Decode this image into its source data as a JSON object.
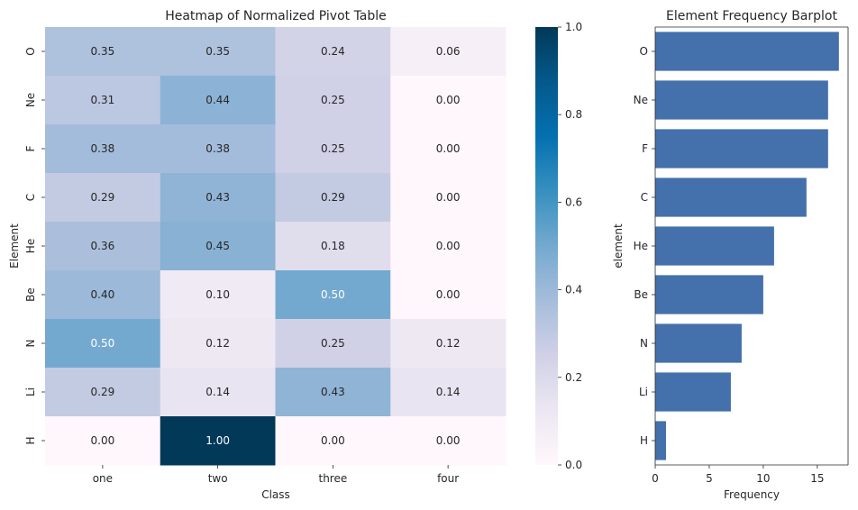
{
  "chart_data": [
    {
      "type": "heatmap",
      "title": "Heatmap of Normalized Pivot Table",
      "xlabel": "Class",
      "ylabel": "Element",
      "x_categories": [
        "one",
        "two",
        "three",
        "four"
      ],
      "y_categories": [
        "O",
        "Ne",
        "F",
        "C",
        "He",
        "Be",
        "N",
        "Li",
        "H"
      ],
      "values": [
        [
          0.35,
          0.35,
          0.24,
          0.06
        ],
        [
          0.31,
          0.44,
          0.25,
          0.0
        ],
        [
          0.38,
          0.38,
          0.25,
          0.0
        ],
        [
          0.29,
          0.43,
          0.29,
          0.0
        ],
        [
          0.36,
          0.45,
          0.18,
          0.0
        ],
        [
          0.4,
          0.1,
          0.5,
          0.0
        ],
        [
          0.5,
          0.12,
          0.25,
          0.12
        ],
        [
          0.29,
          0.14,
          0.43,
          0.14
        ],
        [
          0.0,
          1.0,
          0.0,
          0.0
        ]
      ],
      "value_format": "0.00",
      "colormap": "PuBu",
      "colorbar": {
        "range": [
          0,
          1
        ],
        "ticks": [
          "0.0",
          "0.2",
          "0.4",
          "0.6",
          "0.8",
          "1.0"
        ]
      },
      "grid": false
    },
    {
      "type": "bar",
      "orientation": "horizontal",
      "title": "Element Frequency Barplot",
      "xlabel": "Frequency",
      "ylabel": "element",
      "categories": [
        "O",
        "Ne",
        "F",
        "C",
        "He",
        "Be",
        "N",
        "Li",
        "H"
      ],
      "values": [
        17,
        16,
        16,
        14,
        11,
        10,
        8,
        7,
        1
      ],
      "xlim": [
        0,
        17.85
      ],
      "xticks": [
        "0",
        "5",
        "10",
        "15"
      ],
      "bar_color": "#4470ab",
      "grid": false
    }
  ]
}
